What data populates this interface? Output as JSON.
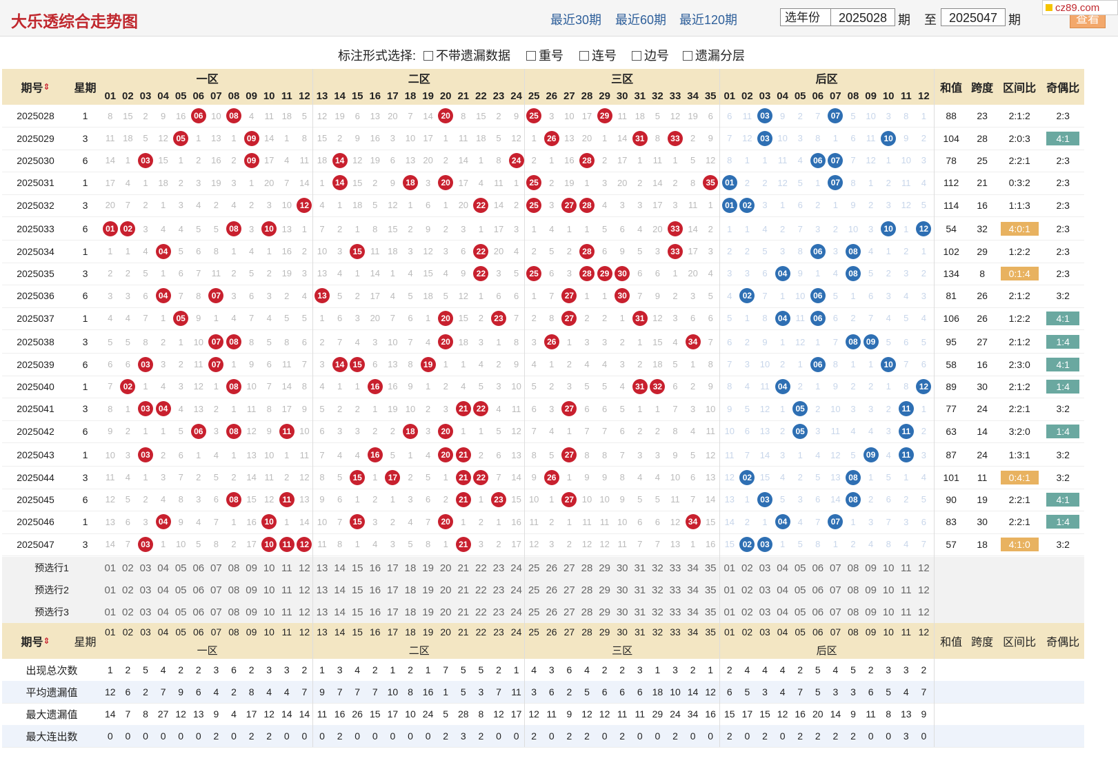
{
  "page": {
    "title": "大乐透综合走势图",
    "nav": [
      "最近30期",
      "最近60期",
      "最近120期"
    ],
    "year_select": "选年份",
    "period_from": "2025028",
    "period_unit": "期",
    "to_label": "至",
    "period_to": "2025047",
    "query_button": "查看",
    "watermark": "cz89.com"
  },
  "options": {
    "label": "标注形式选择:",
    "items": [
      "不带遗漏数据",
      "重号",
      "连号",
      "边号",
      "遗漏分层"
    ]
  },
  "headers": {
    "period": "期号",
    "weekday": "星期",
    "zones": [
      "一区",
      "二区",
      "三区",
      "后区"
    ],
    "sum": "和值",
    "span": "跨度",
    "zone_ratio": "区间比",
    "odd_even": "奇偶比"
  },
  "draws": [
    {
      "period": "2025028",
      "week": "1",
      "front": [
        6,
        8,
        20,
        25,
        29
      ],
      "back": [
        3,
        7
      ],
      "sum": "88",
      "span": "23",
      "zr": "2:1:2",
      "oe": "2:3"
    },
    {
      "period": "2025029",
      "week": "3",
      "front": [
        5,
        9,
        26,
        31,
        33
      ],
      "back": [
        3,
        10
      ],
      "sum": "104",
      "span": "28",
      "zr": "2:0:3",
      "oe": "4:1"
    },
    {
      "period": "2025030",
      "week": "6",
      "front": [
        3,
        9,
        14,
        24,
        28
      ],
      "back": [
        6,
        7
      ],
      "sum": "78",
      "span": "25",
      "zr": "2:2:1",
      "oe": "2:3"
    },
    {
      "period": "2025031",
      "week": "1",
      "front": [
        14,
        18,
        20,
        25,
        35
      ],
      "back": [
        1,
        7
      ],
      "sum": "112",
      "span": "21",
      "zr": "0:3:2",
      "oe": "2:3"
    },
    {
      "period": "2025032",
      "week": "3",
      "front": [
        12,
        22,
        25,
        27,
        28
      ],
      "back": [
        1,
        2
      ],
      "sum": "114",
      "span": "16",
      "zr": "1:1:3",
      "oe": "2:3"
    },
    {
      "period": "2025033",
      "week": "6",
      "front": [
        1,
        2,
        8,
        10,
        33
      ],
      "back": [
        10,
        12
      ],
      "sum": "54",
      "span": "32",
      "zr": "4:0:1",
      "oe": "2:3"
    },
    {
      "period": "2025034",
      "week": "1",
      "front": [
        4,
        15,
        22,
        28,
        33
      ],
      "back": [
        6,
        8
      ],
      "sum": "102",
      "span": "29",
      "zr": "1:2:2",
      "oe": "2:3"
    },
    {
      "period": "2025035",
      "week": "3",
      "front": [
        22,
        25,
        28,
        29,
        30
      ],
      "back": [
        4,
        8
      ],
      "sum": "134",
      "span": "8",
      "zr": "0:1:4",
      "oe": "2:3"
    },
    {
      "period": "2025036",
      "week": "6",
      "front": [
        4,
        7,
        13,
        27,
        30
      ],
      "back": [
        2,
        6
      ],
      "sum": "81",
      "span": "26",
      "zr": "2:1:2",
      "oe": "3:2"
    },
    {
      "period": "2025037",
      "week": "1",
      "front": [
        5,
        20,
        23,
        27,
        31
      ],
      "back": [
        4,
        6
      ],
      "sum": "106",
      "span": "26",
      "zr": "1:2:2",
      "oe": "4:1"
    },
    {
      "period": "2025038",
      "week": "3",
      "front": [
        7,
        8,
        20,
        26,
        34
      ],
      "back": [
        8,
        9
      ],
      "sum": "95",
      "span": "27",
      "zr": "2:1:2",
      "oe": "1:4"
    },
    {
      "period": "2025039",
      "week": "6",
      "front": [
        3,
        7,
        14,
        15,
        19
      ],
      "back": [
        6,
        10
      ],
      "sum": "58",
      "span": "16",
      "zr": "2:3:0",
      "oe": "4:1"
    },
    {
      "period": "2025040",
      "week": "1",
      "front": [
        2,
        8,
        16,
        31,
        32
      ],
      "back": [
        4,
        12
      ],
      "sum": "89",
      "span": "30",
      "zr": "2:1:2",
      "oe": "1:4"
    },
    {
      "period": "2025041",
      "week": "3",
      "front": [
        3,
        4,
        21,
        22,
        27
      ],
      "back": [
        5,
        11
      ],
      "sum": "77",
      "span": "24",
      "zr": "2:2:1",
      "oe": "3:2"
    },
    {
      "period": "2025042",
      "week": "6",
      "front": [
        6,
        8,
        11,
        18,
        20
      ],
      "back": [
        5,
        11
      ],
      "sum": "63",
      "span": "14",
      "zr": "3:2:0",
      "oe": "1:4"
    },
    {
      "period": "2025043",
      "week": "1",
      "front": [
        3,
        16,
        20,
        21,
        27
      ],
      "back": [
        9,
        11
      ],
      "sum": "87",
      "span": "24",
      "zr": "1:3:1",
      "oe": "3:2"
    },
    {
      "period": "2025044",
      "week": "3",
      "front": [
        15,
        17,
        21,
        22,
        26
      ],
      "back": [
        2,
        8
      ],
      "sum": "101",
      "span": "11",
      "zr": "0:4:1",
      "oe": "3:2"
    },
    {
      "period": "2025045",
      "week": "6",
      "front": [
        8,
        11,
        21,
        23,
        27
      ],
      "back": [
        3,
        8
      ],
      "sum": "90",
      "span": "19",
      "zr": "2:2:1",
      "oe": "4:1"
    },
    {
      "period": "2025046",
      "week": "1",
      "front": [
        4,
        10,
        15,
        20,
        34
      ],
      "back": [
        4,
        7
      ],
      "sum": "83",
      "span": "30",
      "zr": "2:2:1",
      "oe": "1:4"
    },
    {
      "period": "2025047",
      "week": "3",
      "front": [
        3,
        10,
        11,
        12,
        21
      ],
      "back": [
        2,
        3
      ],
      "sum": "57",
      "span": "18",
      "zr": "4:1:0",
      "oe": "3:2"
    }
  ],
  "preselect_rows": [
    "预选行1",
    "预选行2",
    "预选行3"
  ],
  "stats": [
    {
      "label": "出现总次数",
      "front": [
        1,
        2,
        5,
        4,
        2,
        2,
        3,
        6,
        2,
        3,
        3,
        2,
        1,
        3,
        4,
        2,
        1,
        2,
        1,
        7,
        5,
        5,
        2,
        1,
        4,
        3,
        6,
        4,
        2,
        2,
        3,
        1,
        3,
        2,
        1
      ],
      "back": [
        2,
        4,
        4,
        4,
        2,
        5,
        4,
        5,
        2,
        3,
        3,
        2
      ]
    },
    {
      "label": "平均遗漏值",
      "front": [
        12,
        6,
        2,
        7,
        9,
        6,
        4,
        2,
        8,
        4,
        4,
        7,
        9,
        7,
        7,
        7,
        10,
        8,
        16,
        1,
        5,
        3,
        7,
        11,
        3,
        6,
        2,
        5,
        6,
        6,
        6,
        18,
        10,
        14,
        12
      ],
      "back": [
        6,
        5,
        3,
        4,
        7,
        5,
        3,
        3,
        6,
        5,
        4,
        7
      ]
    },
    {
      "label": "最大遗漏值",
      "front": [
        14,
        7,
        8,
        27,
        12,
        13,
        9,
        4,
        17,
        12,
        14,
        14,
        11,
        16,
        26,
        15,
        17,
        10,
        24,
        5,
        28,
        8,
        12,
        17,
        12,
        11,
        9,
        12,
        12,
        11,
        11,
        29,
        24,
        34,
        16
      ],
      "back": [
        15,
        17,
        15,
        12,
        16,
        20,
        14,
        9,
        11,
        8,
        13,
        9
      ]
    },
    {
      "label": "最大连出数",
      "front": [
        0,
        0,
        0,
        0,
        0,
        0,
        2,
        0,
        2,
        2,
        0,
        0,
        0,
        2,
        0,
        0,
        0,
        0,
        0,
        2,
        3,
        2,
        0,
        0,
        2,
        0,
        2,
        2,
        0,
        2,
        0,
        0,
        2,
        0,
        0
      ],
      "back": [
        2,
        0,
        2,
        0,
        2,
        2,
        2,
        2,
        0,
        0,
        3,
        0
      ]
    }
  ],
  "colors": {
    "red": "#c8202e",
    "blue": "#2e6fb3",
    "header": "#f3e6c3",
    "green_ratio": "#6aa8a0",
    "orange_ratio": "#e8b260"
  },
  "icons": {
    "sort": "sort-arrows-icon",
    "select": "chevron-down-icon"
  }
}
